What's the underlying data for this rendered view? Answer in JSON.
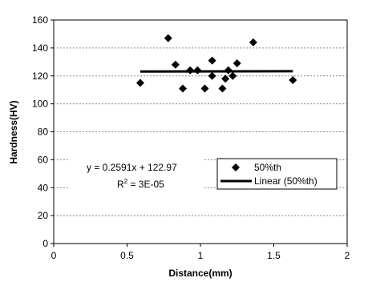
{
  "chart_data": {
    "type": "scatter",
    "xlabel": "Distance(mm)",
    "ylabel": "Hardness(HV)",
    "xlim": [
      0,
      2
    ],
    "ylim": [
      0,
      160
    ],
    "xticks": [
      "0",
      "0.5",
      "1",
      "1.5",
      "2"
    ],
    "yticks": [
      "0",
      "20",
      "40",
      "60",
      "80",
      "100",
      "120",
      "140",
      "160"
    ],
    "grid": "horizontal",
    "series": [
      {
        "name": "50%th",
        "marker": "diamond",
        "x": [
          0.59,
          0.78,
          0.83,
          0.88,
          0.93,
          0.98,
          1.03,
          1.08,
          1.08,
          1.15,
          1.17,
          1.19,
          1.22,
          1.25,
          1.36,
          1.63
        ],
        "y": [
          115,
          147,
          128,
          111,
          124,
          124,
          111,
          131,
          120,
          111,
          118,
          124,
          120,
          129,
          144,
          117
        ]
      }
    ],
    "trendline": {
      "name": "Linear (50%th)",
      "slope": 0.2591,
      "intercept": 122.97,
      "x_range": [
        0.59,
        1.63
      ]
    },
    "equation": "y = 0.2591x + 122.97",
    "r_squared_prefix": "R",
    "r_squared_sup": "2",
    "r_squared_value": " = 3E-05",
    "legend_position": "center-right",
    "colors": {
      "marker": "#000000",
      "trendline": "#000000",
      "grid": "#8c8c8c",
      "axis": "#000000"
    }
  }
}
